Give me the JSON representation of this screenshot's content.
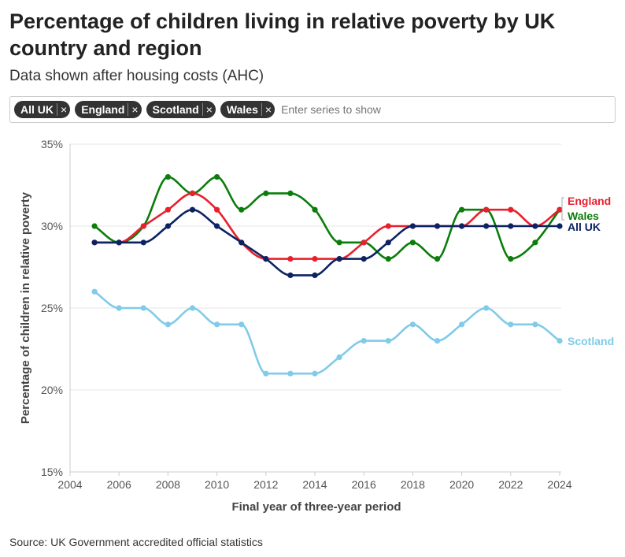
{
  "title": "Percentage of children living in relative poverty by UK country and region",
  "subtitle": "Data shown after housing costs (AHC)",
  "filter": {
    "chips": [
      {
        "label": "All UK",
        "remove": "×"
      },
      {
        "label": "England",
        "remove": "×"
      },
      {
        "label": "Scotland",
        "remove": "×"
      },
      {
        "label": "Wales",
        "remove": "×"
      }
    ],
    "placeholder": "Enter series to show"
  },
  "source": "Source: UK Government accredited official statistics",
  "chart_data": {
    "type": "line",
    "xlabel": "Final year of three-year period",
    "ylabel": "Percentage of children in relative poverty",
    "xlim": [
      2004,
      2024
    ],
    "ylim": [
      15,
      35
    ],
    "xticks": [
      "2004",
      "2006",
      "2008",
      "2010",
      "2012",
      "2014",
      "2016",
      "2018",
      "2020",
      "2022",
      "2024"
    ],
    "yticks": [
      "15%",
      "20%",
      "25%",
      "30%",
      "35%"
    ],
    "x": [
      2005,
      2006,
      2007,
      2008,
      2009,
      2010,
      2011,
      2012,
      2013,
      2014,
      2015,
      2016,
      2017,
      2018,
      2019,
      2020,
      2021,
      2022,
      2023,
      2024
    ],
    "series": [
      {
        "name": "Scotland",
        "color": "#7fcbe8",
        "values": [
          26,
          25,
          25,
          24,
          25,
          24,
          24,
          21,
          21,
          21,
          22,
          23,
          23,
          24,
          23,
          24,
          25,
          24,
          24,
          23
        ]
      },
      {
        "name": "Wales",
        "color": "#0a7d0a",
        "values": [
          30,
          29,
          30,
          33,
          32,
          33,
          31,
          32,
          32,
          31,
          29,
          29,
          28,
          29,
          28,
          31,
          31,
          28,
          29,
          31
        ]
      },
      {
        "name": "England",
        "color": "#e8202e",
        "values": [
          29,
          29,
          30,
          31,
          32,
          31,
          29,
          28,
          28,
          28,
          28,
          29,
          30,
          30,
          30,
          30,
          31,
          31,
          30,
          31
        ]
      },
      {
        "name": "All UK",
        "color": "#0b2263",
        "values": [
          29,
          29,
          29,
          30,
          31,
          30,
          29,
          28,
          27,
          27,
          28,
          28,
          29,
          30,
          30,
          30,
          30,
          30,
          30,
          30
        ]
      }
    ]
  }
}
